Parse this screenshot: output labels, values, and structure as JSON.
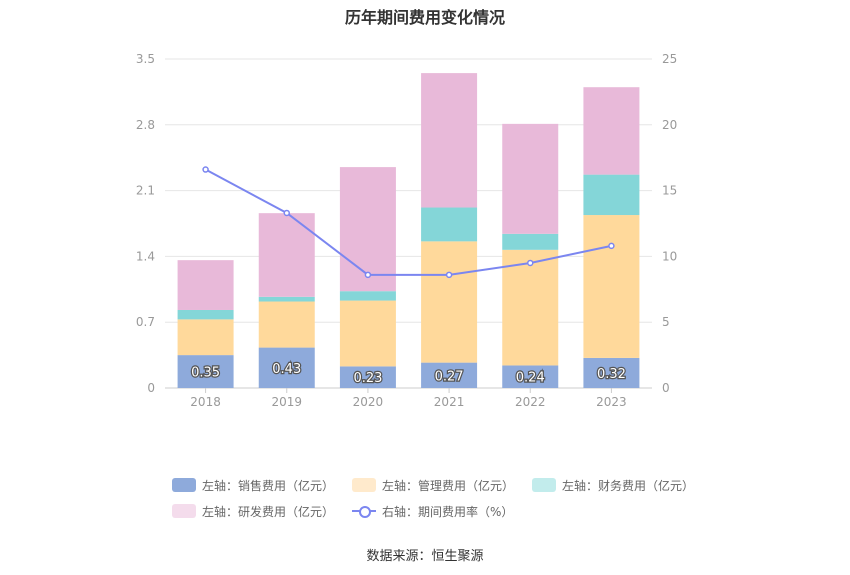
{
  "chart_data": {
    "type": "bar",
    "stacked": true,
    "title": "历年期间费用变化情况",
    "categories": [
      "2018",
      "2019",
      "2020",
      "2021",
      "2022",
      "2023"
    ],
    "series": [
      {
        "name": "左轴：销售费用（亿元）",
        "axis": "left",
        "color": "#8eaadb",
        "legend_color": "#8eaadb",
        "values": [
          0.35,
          0.43,
          0.23,
          0.27,
          0.24,
          0.32
        ],
        "labels": [
          "0.35",
          "0.43",
          "0.23",
          "0.27",
          "0.24",
          "0.32"
        ]
      },
      {
        "name": "左轴：管理费用（亿元）",
        "axis": "left",
        "color": "#ffd99b",
        "legend_color": "#ffeacc",
        "values": [
          0.38,
          0.49,
          0.7,
          1.29,
          1.23,
          1.52
        ]
      },
      {
        "name": "左轴：财务费用（亿元）",
        "axis": "left",
        "color": "#84d6d8",
        "legend_color": "#c2ecec",
        "values": [
          0.1,
          0.05,
          0.1,
          0.36,
          0.17,
          0.43
        ]
      },
      {
        "name": "左轴：研发费用（亿元）",
        "axis": "left",
        "color": "#e8b9d9",
        "legend_color": "#f4dcec",
        "values": [
          0.53,
          0.89,
          1.32,
          1.43,
          1.17,
          0.93
        ]
      }
    ],
    "line": {
      "name": "右轴：期间费用率（%）",
      "axis": "right",
      "color": "#7b86f0",
      "values": [
        16.6,
        13.3,
        8.6,
        8.6,
        9.5,
        10.8
      ]
    },
    "left_axis": {
      "min": 0,
      "max": 3.5,
      "ticks": [
        "0",
        "0.7",
        "1.4",
        "2.1",
        "2.8",
        "3.5"
      ]
    },
    "right_axis": {
      "min": 0,
      "max": 25,
      "ticks": [
        "0",
        "5",
        "10",
        "15",
        "20",
        "25"
      ]
    },
    "grid": true,
    "legend_position": "bottom"
  },
  "source": "数据来源：恒生聚源"
}
